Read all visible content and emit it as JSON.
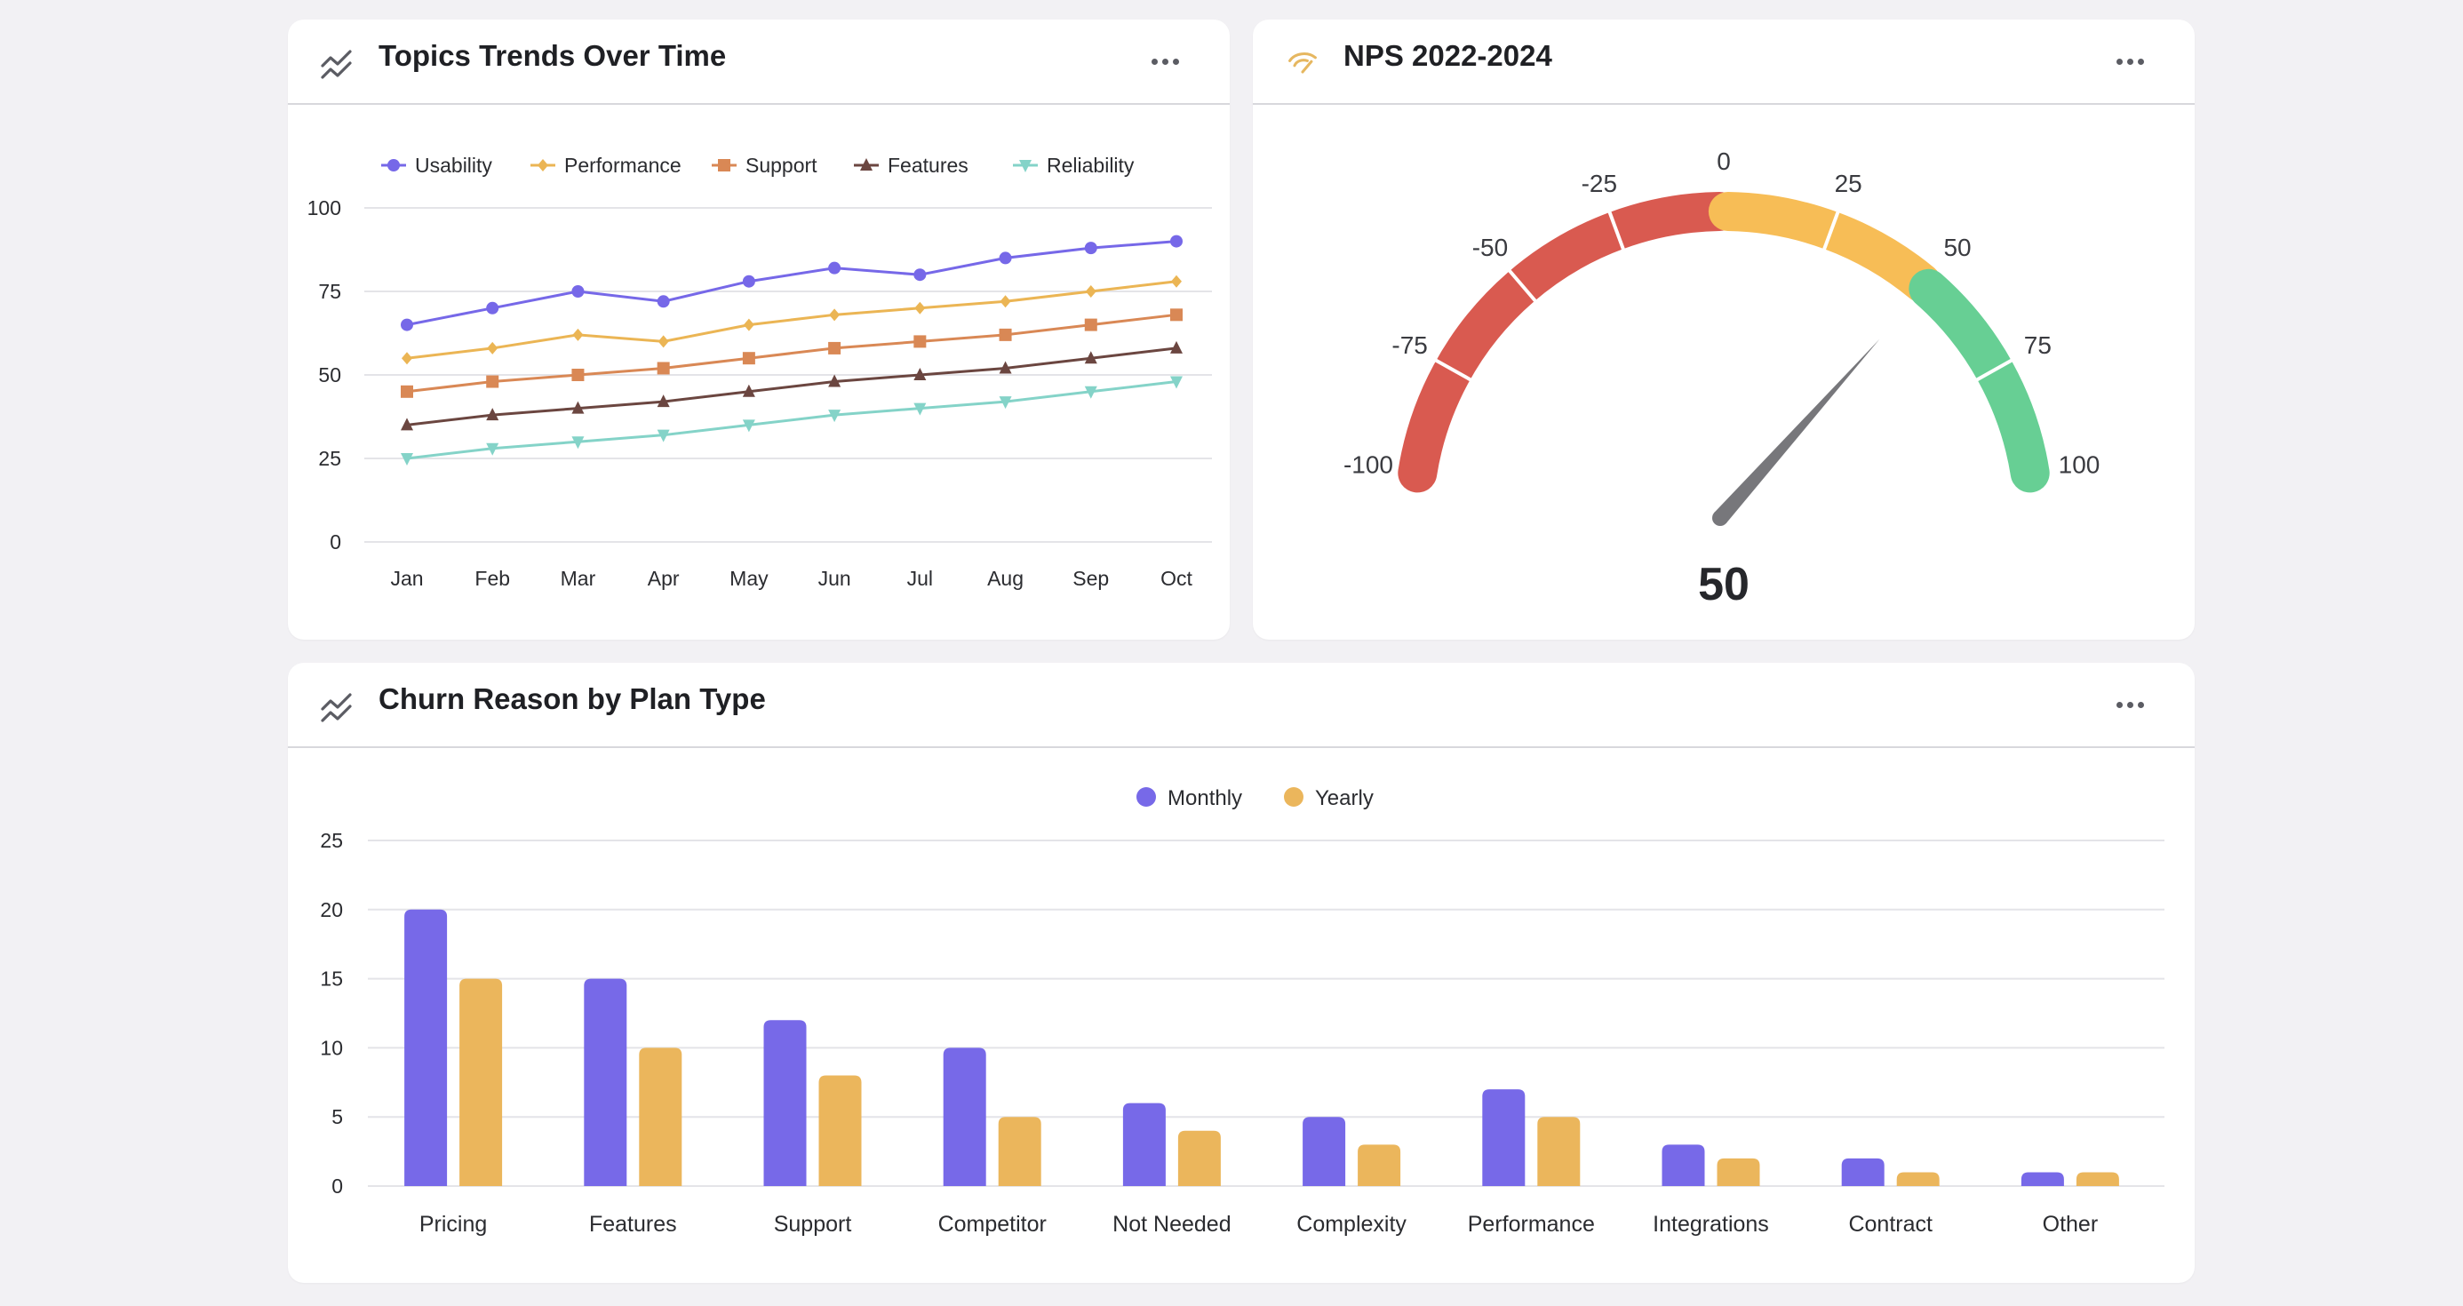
{
  "colors": {
    "usability": "#7668e8",
    "performance": "#ebb554",
    "support": "#d98855",
    "features": "#6b4640",
    "reliability": "#84d3c8",
    "monthly": "#7769e8",
    "yearly": "#ebb65c",
    "gauge_red": "#d95a50",
    "gauge_yellow": "#f7bd56",
    "gauge_green": "#67cf94",
    "needle": "#77777b"
  },
  "topics_card": {
    "title": "Topics Trends Over Time",
    "icon": "trend-lines-icon",
    "menu_icon": "more-horizontal-icon"
  },
  "nps_card": {
    "title": "NPS 2022-2024",
    "icon": "gauge-icon",
    "menu_icon": "more-horizontal-icon",
    "value_label": "50"
  },
  "churn_card": {
    "title": "Churn Reason by Plan Type",
    "icon": "trend-lines-icon",
    "menu_icon": "more-horizontal-icon"
  },
  "chart_data": [
    {
      "type": "line",
      "categories": [
        "Jan",
        "Feb",
        "Mar",
        "Apr",
        "May",
        "Jun",
        "Jul",
        "Aug",
        "Sep",
        "Oct"
      ],
      "series": [
        {
          "name": "Usability",
          "marker": "circle",
          "values": [
            65,
            70,
            75,
            72,
            78,
            82,
            80,
            85,
            88,
            90
          ]
        },
        {
          "name": "Performance",
          "marker": "diamond",
          "values": [
            55,
            58,
            62,
            60,
            65,
            68,
            70,
            72,
            75,
            78
          ]
        },
        {
          "name": "Support",
          "marker": "square",
          "values": [
            45,
            48,
            50,
            52,
            55,
            58,
            60,
            62,
            65,
            68
          ]
        },
        {
          "name": "Features",
          "marker": "triangle-up",
          "values": [
            35,
            38,
            40,
            42,
            45,
            48,
            50,
            52,
            55,
            58
          ]
        },
        {
          "name": "Reliability",
          "marker": "triangle-down",
          "values": [
            25,
            28,
            30,
            32,
            35,
            38,
            40,
            42,
            45,
            48
          ]
        }
      ],
      "ylim": [
        0,
        100
      ],
      "yticks": [
        "0",
        "25",
        "50",
        "75",
        "100"
      ],
      "grid": true,
      "legend": "top"
    },
    {
      "type": "gauge",
      "value": 50,
      "range": [
        -100,
        100
      ],
      "ticks": [
        "-100",
        "-75",
        "-50",
        "-25",
        "0",
        "25",
        "50",
        "75",
        "100"
      ],
      "bands": [
        {
          "from": -100,
          "to": 0,
          "color": "red"
        },
        {
          "from": 0,
          "to": 50,
          "color": "yellow"
        },
        {
          "from": 50,
          "to": 100,
          "color": "green"
        }
      ]
    },
    {
      "type": "bar",
      "categories": [
        "Pricing",
        "Features",
        "Support",
        "Competitor",
        "Not Needed",
        "Complexity",
        "Performance",
        "Integrations",
        "Contract",
        "Other"
      ],
      "series": [
        {
          "name": "Monthly",
          "values": [
            20,
            15,
            12,
            10,
            6,
            5,
            7,
            3,
            2,
            1
          ]
        },
        {
          "name": "Yearly",
          "values": [
            15,
            10,
            8,
            5,
            4,
            3,
            5,
            2,
            1,
            1
          ]
        }
      ],
      "ylim": [
        0,
        25
      ],
      "yticks": [
        "0",
        "5",
        "10",
        "15",
        "20",
        "25"
      ],
      "grid": true,
      "legend": "top"
    }
  ]
}
